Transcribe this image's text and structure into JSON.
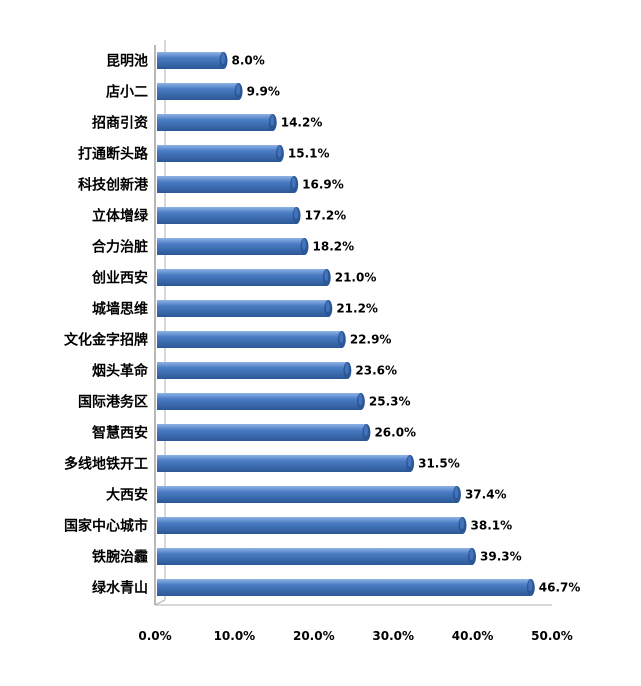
{
  "chart_data": {
    "type": "bar",
    "orientation": "horizontal",
    "style": "3d-cylinder",
    "categories": [
      "昆明池",
      "店小二",
      "招商引资",
      "打通断头路",
      "科技创新港",
      "立体增绿",
      "合力治脏",
      "创业西安",
      "城墙思维",
      "文化金字招牌",
      "烟头革命",
      "国际港务区",
      "智慧西安",
      "多线地铁开工",
      "大西安",
      "国家中心城市",
      "铁腕治霾",
      "绿水青山"
    ],
    "values": [
      8.0,
      9.9,
      14.2,
      15.1,
      16.9,
      17.2,
      18.2,
      21.0,
      21.2,
      22.9,
      23.6,
      25.3,
      26.0,
      31.5,
      37.4,
      38.1,
      39.3,
      46.7
    ],
    "value_labels": [
      "8.0%",
      "9.9%",
      "14.2%",
      "15.1%",
      "16.9%",
      "17.2%",
      "18.2%",
      "21.0%",
      "21.2%",
      "22.9%",
      "23.6%",
      "25.3%",
      "26.0%",
      "31.5%",
      "37.4%",
      "38.1%",
      "39.3%",
      "46.7%"
    ],
    "x_ticks": [
      0,
      10,
      20,
      30,
      40,
      50
    ],
    "x_tick_labels": [
      "0.0%",
      "10.0%",
      "20.0%",
      "30.0%",
      "40.0%",
      "50.0%"
    ],
    "xlim": [
      0,
      50
    ],
    "title": "",
    "xlabel": "",
    "ylabel": "",
    "grid": false,
    "legend": "none",
    "bar_color": "#4a7cc4",
    "bar_dark": "#2b5796",
    "bar_light": "#8fb3e6"
  }
}
